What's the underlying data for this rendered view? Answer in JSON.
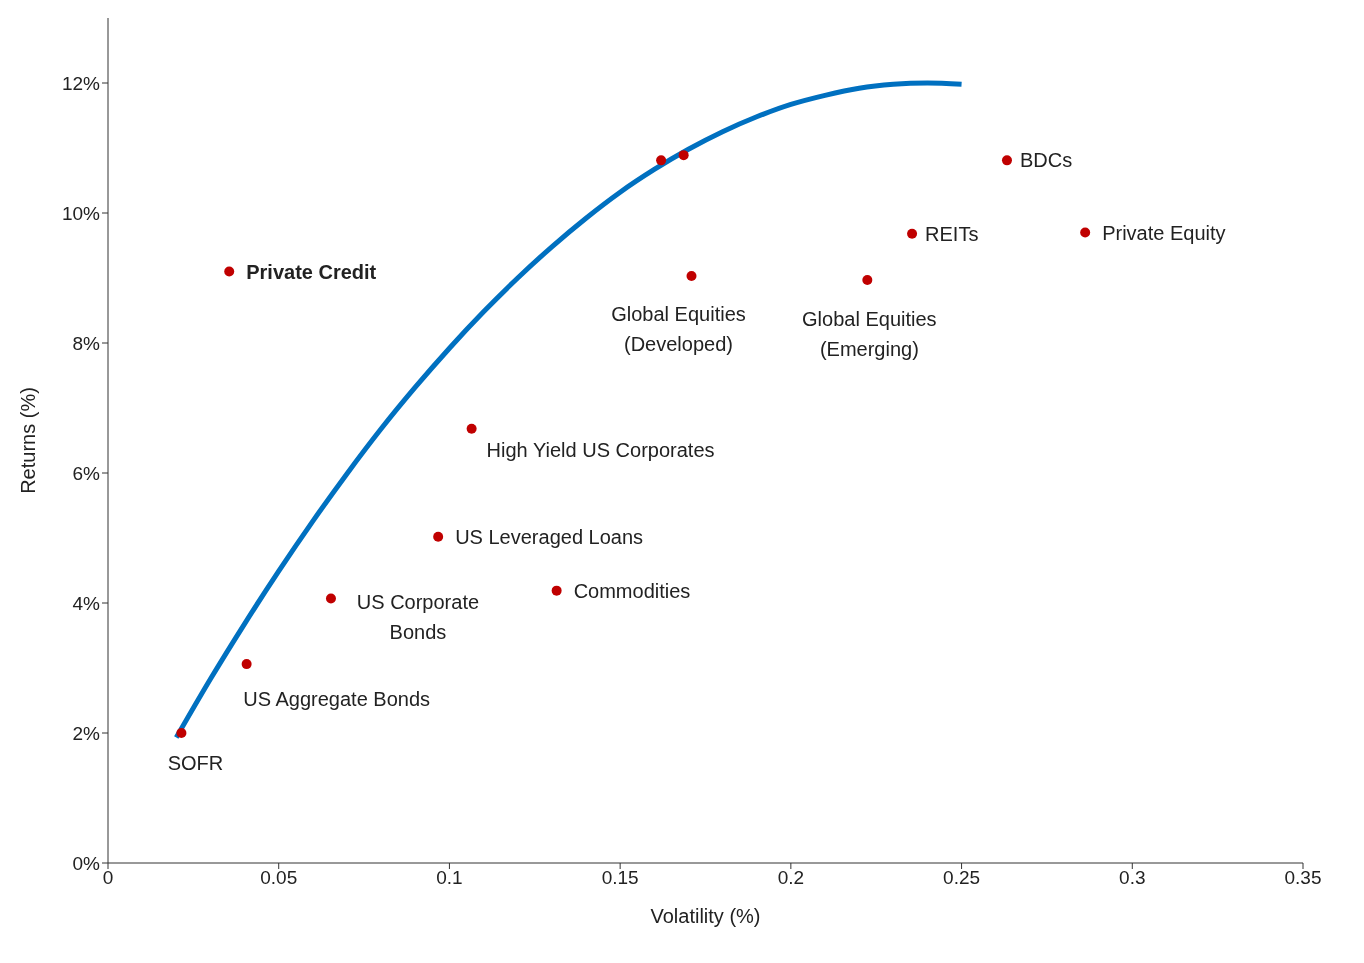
{
  "chart_data": {
    "type": "scatter",
    "xlabel": "Volatility (%)",
    "ylabel": "Returns (%)",
    "xlim": [
      0,
      0.35
    ],
    "xticks": [
      0,
      0.05,
      0.1,
      0.15,
      0.2,
      0.25,
      0.3,
      0.35
    ],
    "ylim": [
      0,
      13
    ],
    "yticks": [
      {
        "value": 0,
        "label": "0%"
      },
      {
        "value": 2,
        "label": "2%"
      },
      {
        "value": 4,
        "label": "4%"
      },
      {
        "value": 6,
        "label": "6%"
      },
      {
        "value": 8,
        "label": "8%"
      },
      {
        "value": 10,
        "label": "10%"
      },
      {
        "value": 12,
        "label": "12%"
      }
    ],
    "grid": false,
    "legend": false,
    "marker": "circle",
    "series": [
      {
        "type": "line",
        "color": "#0070c0",
        "line_style": "solid",
        "marker": "none",
        "x": [
          0.02,
          0.03,
          0.04,
          0.05,
          0.06,
          0.07,
          0.08,
          0.09,
          0.1,
          0.11,
          0.12,
          0.13,
          0.14,
          0.15,
          0.16,
          0.17,
          0.18,
          0.19,
          0.2,
          0.21,
          0.22,
          0.23,
          0.24,
          0.25
        ],
        "values": [
          1.93,
          2.83,
          3.68,
          4.49,
          5.26,
          5.99,
          6.68,
          7.32,
          7.92,
          8.48,
          9.0,
          9.48,
          9.92,
          10.32,
          10.67,
          10.98,
          11.25,
          11.48,
          11.67,
          11.81,
          11.92,
          11.98,
          12.0,
          11.98
        ]
      },
      {
        "color": "#c00000",
        "x": [
          0.0355,
          0.0215,
          0.0406,
          0.0653,
          0.0967,
          0.1065,
          0.1314,
          0.162,
          0.1686,
          0.1709,
          0.2224,
          0.2355,
          0.2633,
          0.2862
        ],
        "values": [
          9.1,
          2.0,
          3.06,
          4.07,
          5.02,
          6.68,
          4.19,
          10.81,
          10.89,
          9.03,
          8.97,
          9.68,
          10.81,
          9.7
        ]
      }
    ],
    "annotations": [
      {
        "text": "Private Credit",
        "x": 0.0355,
        "y": 9.1
      },
      {
        "text": "SOFR",
        "x": 0.0215,
        "y": 2.0
      },
      {
        "text": "US Aggregate Bonds",
        "x": 0.0406,
        "y": 3.06
      },
      {
        "text": "US Corporate\nBonds",
        "x": 0.0653,
        "y": 4.07
      },
      {
        "text": "US Leveraged Loans",
        "x": 0.0967,
        "y": 5.02
      },
      {
        "text": "High Yield US Corporates",
        "x": 0.1065,
        "y": 6.68
      },
      {
        "text": "Commodities",
        "x": 0.1314,
        "y": 4.19
      },
      {
        "text": "Global Equities\n(Developed)",
        "x": 0.1709,
        "y": 9.03
      },
      {
        "text": "Global Equities\n(Emerging)",
        "x": 0.2224,
        "y": 8.97
      },
      {
        "text": "REITs",
        "x": 0.2355,
        "y": 9.68
      },
      {
        "text": "BDCs",
        "x": 0.2633,
        "y": 10.81
      },
      {
        "text": "Private Equity",
        "x": 0.2862,
        "y": 9.7
      }
    ]
  }
}
